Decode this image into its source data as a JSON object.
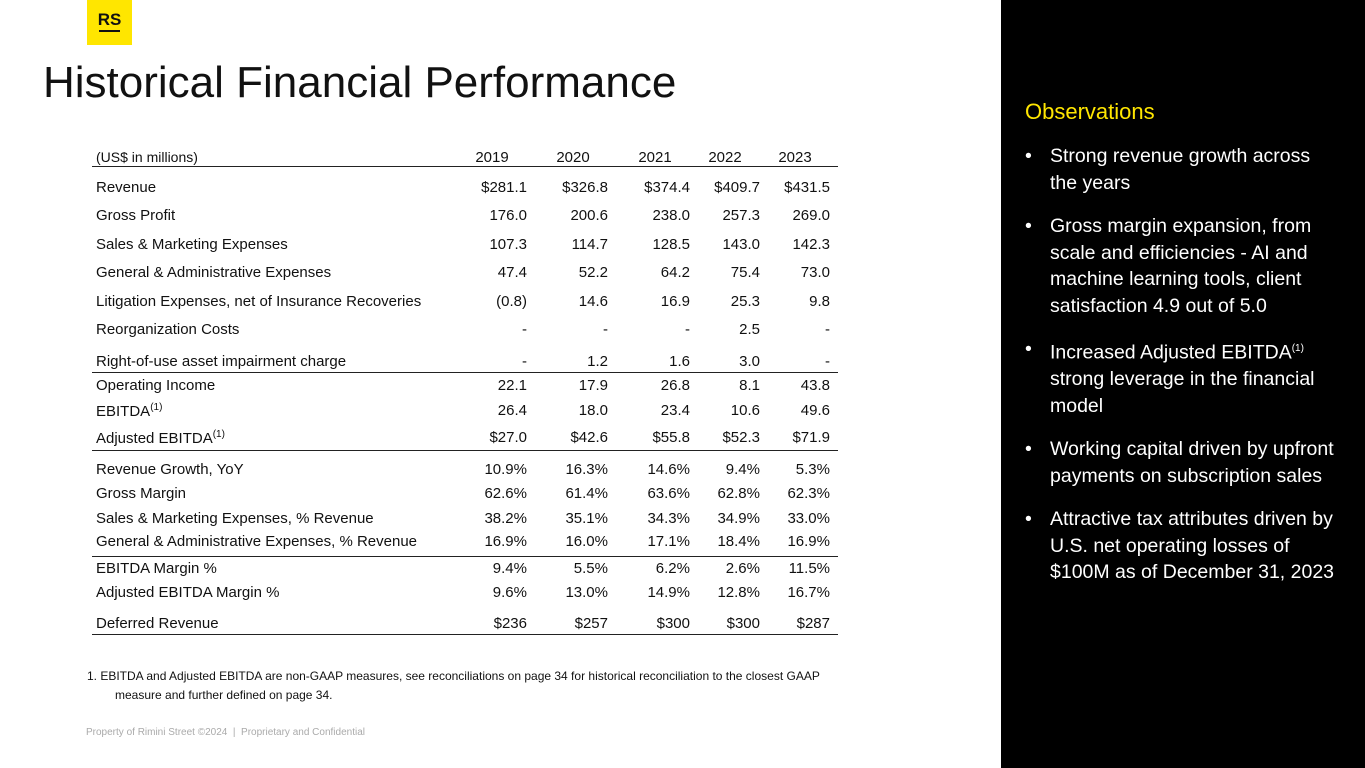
{
  "logo": "RS",
  "title": "Historical Financial Performance",
  "table": {
    "header": [
      "(US$ in millions)",
      "2019",
      "2020",
      "2021",
      "2022",
      "2023"
    ],
    "rows": [
      {
        "label": "Revenue",
        "cells": [
          "$281.1",
          "$326.8",
          "$374.4",
          "$409.7",
          "$431.5"
        ]
      },
      {
        "label": "Gross Profit",
        "cells": [
          "176.0",
          "200.6",
          "238.0",
          "257.3",
          "269.0"
        ]
      },
      {
        "label": "Sales & Marketing Expenses",
        "cells": [
          "107.3",
          "114.7",
          "128.5",
          "143.0",
          "142.3"
        ]
      },
      {
        "label": "General & Administrative Expenses",
        "cells": [
          "47.4",
          "52.2",
          "64.2",
          "75.4",
          "73.0"
        ]
      },
      {
        "label": "Litigation Expenses, net of Insurance Recoveries",
        "cells": [
          "(0.8)",
          "14.6",
          "16.9",
          "25.3",
          "9.8"
        ]
      },
      {
        "label": "Reorganization Costs",
        "cells": [
          "-",
          "-",
          "-",
          "2.5",
          "-"
        ]
      },
      {
        "label": "Right-of-use asset impairment charge",
        "cells": [
          "-",
          "1.2",
          "1.6",
          "3.0",
          "-"
        ]
      },
      {
        "label": "Operating Income",
        "cells": [
          "22.1",
          "17.9",
          "26.8",
          "8.1",
          "43.8"
        ]
      },
      {
        "label": "EBITDA",
        "sup": "(1)",
        "cells": [
          "26.4",
          "18.0",
          "23.4",
          "10.6",
          "49.6"
        ]
      },
      {
        "label": "Adjusted EBITDA",
        "sup": "(1)",
        "cells": [
          "$27.0",
          "$42.6",
          "$55.8",
          "$52.3",
          "$71.9"
        ]
      },
      {
        "label": "Revenue Growth, YoY",
        "cells": [
          "10.9%",
          "16.3%",
          "14.6%",
          "9.4%",
          "5.3%"
        ]
      },
      {
        "label": "Gross Margin",
        "cells": [
          "62.6%",
          "61.4%",
          "63.6%",
          "62.8%",
          "62.3%"
        ]
      },
      {
        "label": "Sales & Marketing Expenses, % Revenue",
        "cells": [
          "38.2%",
          "35.1%",
          "34.3%",
          "34.9%",
          "33.0%"
        ]
      },
      {
        "label": "General & Administrative Expenses, % Revenue",
        "cells": [
          "16.9%",
          "16.0%",
          "17.1%",
          "18.4%",
          "16.9%"
        ]
      },
      {
        "label": "EBITDA Margin %",
        "cells": [
          "9.4%",
          "5.5%",
          "6.2%",
          "2.6%",
          "11.5%"
        ]
      },
      {
        "label": "Adjusted EBITDA Margin %",
        "cells": [
          "9.6%",
          "13.0%",
          "14.9%",
          "12.8%",
          "16.7%"
        ]
      },
      {
        "label": "Deferred Revenue",
        "cells": [
          "$236",
          "$257",
          "$300",
          "$300",
          "$287"
        ]
      }
    ]
  },
  "footnote": "1. EBITDA and Adjusted EBITDA are non-GAAP measures, see reconciliations on page 34 for historical reconciliation to the closest GAAP measure and further defined on page 34.",
  "footer": "Property of Rimini Street ©2024  |  Proprietary and Confidential",
  "sidebar": {
    "title": "Observations",
    "bullets": [
      {
        "text": "Strong revenue growth across the years"
      },
      {
        "text": "Gross margin expansion, from scale and efficiencies - AI and machine learning tools, client satisfaction 4.9 out of 5.0"
      },
      {
        "text": "Increased Adjusted EBITDA",
        "sup": "(1)",
        "tail": " strong leverage in the financial model"
      },
      {
        "text": "Working capital driven by upfront payments on subscription sales"
      },
      {
        "text": "Attractive tax attributes driven by U.S. net operating losses of $100M as of December 31, 2023"
      }
    ]
  }
}
